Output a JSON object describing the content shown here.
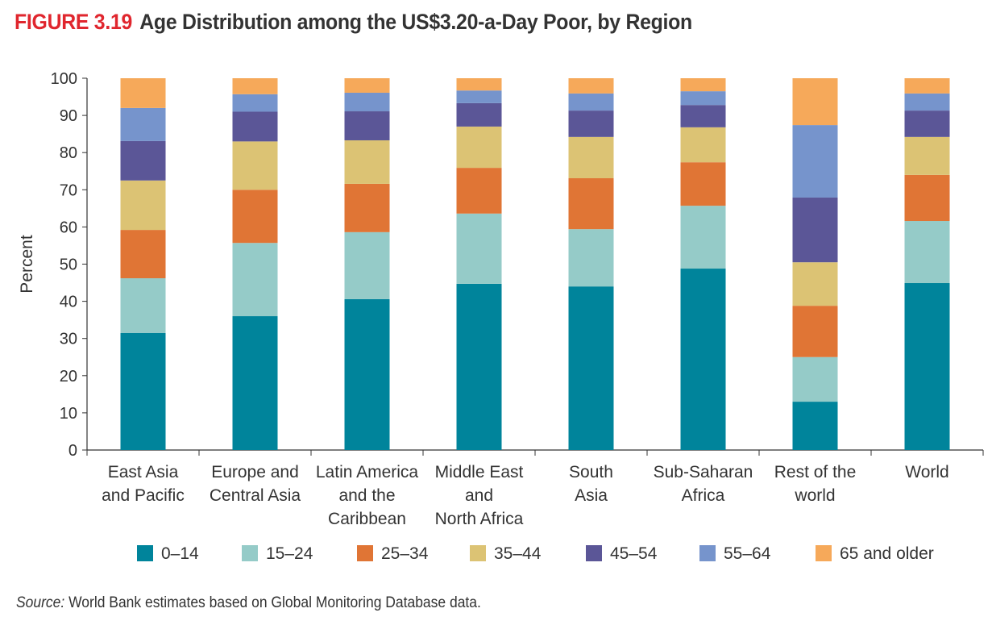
{
  "chart_data": {
    "type": "bar",
    "stacked": true,
    "figure_label": "FIGURE 3.19",
    "title": "Age Distribution among the US$3.20-a-Day Poor, by Region",
    "xlabel": "",
    "ylabel": "Percent",
    "ylim": [
      0,
      100
    ],
    "yticks": [
      0,
      10,
      20,
      30,
      40,
      50,
      60,
      70,
      80,
      90,
      100
    ],
    "categories": [
      [
        "East Asia",
        "and Pacific"
      ],
      [
        "Europe and",
        "Central Asia"
      ],
      [
        "Latin America",
        "and the",
        "Caribbean"
      ],
      [
        "Middle East",
        "and",
        "North Africa"
      ],
      [
        "South",
        "Asia"
      ],
      [
        "Sub-Saharan",
        "Africa"
      ],
      [
        "Rest of the",
        "world"
      ],
      [
        "World"
      ]
    ],
    "series": [
      {
        "name": "0–14",
        "color": "#00849b",
        "values": [
          31.5,
          36.0,
          40.6,
          44.7,
          44.0,
          48.8,
          13.0,
          44.9
        ]
      },
      {
        "name": "15–24",
        "color": "#95cbc8",
        "values": [
          14.7,
          19.7,
          18.0,
          18.9,
          15.4,
          16.9,
          12.0,
          16.7
        ]
      },
      {
        "name": "25–34",
        "color": "#e07535",
        "values": [
          13.0,
          14.3,
          13.0,
          12.3,
          13.7,
          11.7,
          13.8,
          12.4
        ]
      },
      {
        "name": "35–44",
        "color": "#dcc374",
        "values": [
          13.3,
          13.0,
          11.7,
          11.1,
          11.1,
          9.4,
          11.7,
          10.2
        ]
      },
      {
        "name": "45–54",
        "color": "#5b5697",
        "values": [
          10.6,
          8.0,
          7.8,
          6.3,
          7.1,
          6.0,
          17.4,
          7.1
        ]
      },
      {
        "name": "55–64",
        "color": "#7694cc",
        "values": [
          8.9,
          4.7,
          5.0,
          3.4,
          4.6,
          3.7,
          19.5,
          4.6
        ]
      },
      {
        "name": "65 and older",
        "color": "#f6a95a",
        "values": [
          8.0,
          4.3,
          3.9,
          3.3,
          4.1,
          3.5,
          12.6,
          4.1
        ]
      }
    ],
    "legend_position": "bottom",
    "grid": false
  },
  "source_label": "Source:",
  "source_text": " World Bank estimates based on Global Monitoring Database data."
}
